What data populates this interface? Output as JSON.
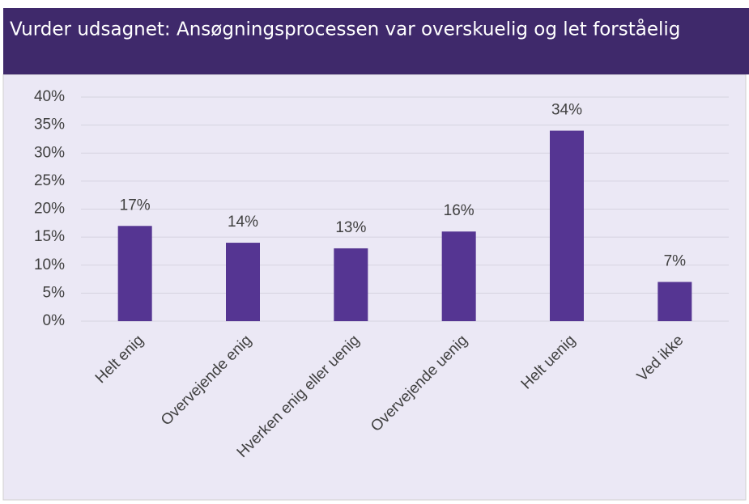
{
  "chart_data": {
    "type": "bar",
    "title": "Vurder udsagnet: Ansøgningsprocessen var overskuelig og let forståelig",
    "categories": [
      "Helt enig",
      "Overvejende enig",
      "Hverken enig eller uenig",
      "Overvejende uenig",
      "Helt uenig",
      "Ved ikke"
    ],
    "values": [
      17,
      14,
      13,
      16,
      34,
      7
    ],
    "value_labels": [
      "17%",
      "14%",
      "13%",
      "16%",
      "34%",
      "7%"
    ],
    "color": "#553592",
    "ylim": [
      0,
      40
    ],
    "yticks": [
      {
        "value": 0,
        "label": "0%"
      },
      {
        "value": 5,
        "label": "5%"
      },
      {
        "value": 10,
        "label": "10%"
      },
      {
        "value": 15,
        "label": "15%"
      },
      {
        "value": 20,
        "label": "20%"
      },
      {
        "value": 25,
        "label": "25%"
      },
      {
        "value": 30,
        "label": "30%"
      },
      {
        "value": 35,
        "label": "35%"
      },
      {
        "value": 40,
        "label": "40%"
      }
    ],
    "grid": true
  }
}
